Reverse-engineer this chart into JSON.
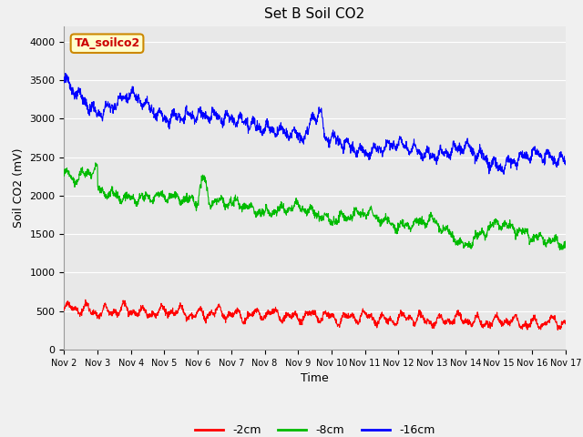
{
  "title": "Set B Soil CO2",
  "ylabel": "Soil CO2 (mV)",
  "xlabel": "Time",
  "annotation": "TA_soilco2",
  "x_tick_labels": [
    "Nov 2",
    "Nov 3",
    "Nov 4",
    "Nov 5",
    "Nov 6",
    "Nov 7",
    "Nov 8",
    "Nov 9",
    "Nov 10",
    "Nov 11",
    "Nov 12",
    "Nov 13",
    "Nov 14",
    "Nov 15",
    "Nov 16",
    "Nov 17"
  ],
  "ylim": [
    0,
    4200
  ],
  "yticks": [
    0,
    500,
    1000,
    1500,
    2000,
    2500,
    3000,
    3500,
    4000
  ],
  "line_colors": [
    "#ff0000",
    "#00bb00",
    "#0000ff"
  ],
  "line_labels": [
    "-2cm",
    "-8cm",
    "-16cm"
  ],
  "fig_bg_color": "#f0f0f0",
  "plot_bg_color": "#e8e8e8",
  "title_fontsize": 11,
  "label_fontsize": 9,
  "tick_fontsize": 8,
  "legend_fontsize": 9,
  "annotation_bg": "#ffffcc",
  "annotation_fg": "#cc0000",
  "annotation_border": "#cc8800",
  "n_points": 2000
}
